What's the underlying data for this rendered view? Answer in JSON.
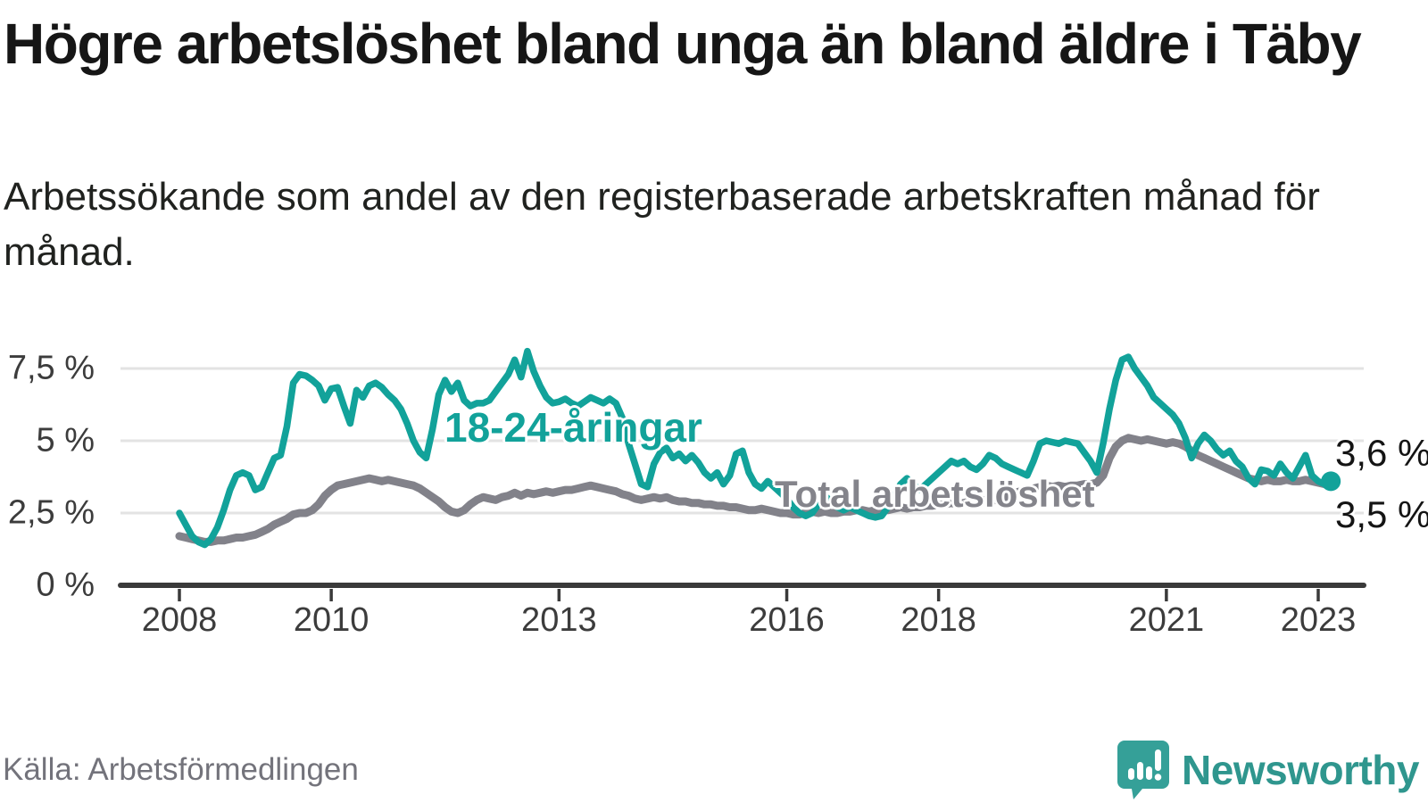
{
  "title": "Högre arbetslöshet bland unga än bland äldre i Täby",
  "subtitle": "Arbetssökande som andel av den registerbaserade arbetskraften månad för månad.",
  "source": "Källa: Arbetsförmedlingen",
  "brand": {
    "name": "Newsworthy",
    "icon": "speech-bubble-bar-chart-icon",
    "color": "#35a098"
  },
  "colors": {
    "young_line": "#12a29a",
    "total_line": "#82828a",
    "grid": "#e3e3e3",
    "axis": "#3a3a3a",
    "axis_text": "#3c3c3c",
    "end_label_text": "#141414",
    "background": "#ffffff"
  },
  "chart_data": {
    "type": "line",
    "title": "Högre arbetslöshet bland unga än bland äldre i Täby",
    "xlabel": "",
    "ylabel": "",
    "unit": "%",
    "grid": true,
    "legend": "inline-labels",
    "x_start": "2008-01",
    "x_end": "2023-03",
    "points_per_month": 1,
    "ylim": [
      0,
      8.5
    ],
    "y_ticks": [
      {
        "value": 7.5,
        "label": "7,5 %"
      },
      {
        "value": 5,
        "label": "5 %"
      },
      {
        "value": 2.5,
        "label": "2,5 %"
      },
      {
        "value": 0,
        "label": "0 %"
      }
    ],
    "x_ticks": [
      {
        "year": 2008,
        "label": "2008"
      },
      {
        "year": 2010,
        "label": "2010"
      },
      {
        "year": 2013,
        "label": "2013"
      },
      {
        "year": 2016,
        "label": "2016"
      },
      {
        "year": 2018,
        "label": "2018"
      },
      {
        "year": 2021,
        "label": "2021"
      },
      {
        "year": 2023,
        "label": "2023"
      }
    ],
    "series": [
      {
        "name": "18-24-åringar",
        "color": "#12a29a",
        "stroke_width": 7.5,
        "end_label": "3,6 %",
        "end_value": 3.6,
        "end_dot": true,
        "values": [
          2.5,
          2.1,
          1.7,
          1.5,
          1.4,
          1.6,
          2.0,
          2.6,
          3.3,
          3.8,
          3.9,
          3.8,
          3.3,
          3.4,
          3.9,
          4.4,
          4.5,
          5.5,
          7.0,
          7.3,
          7.25,
          7.1,
          6.9,
          6.4,
          6.8,
          6.85,
          6.2,
          5.6,
          6.75,
          6.5,
          6.9,
          7.0,
          6.85,
          6.6,
          6.4,
          6.1,
          5.6,
          5.0,
          4.6,
          4.4,
          5.4,
          6.6,
          7.1,
          6.7,
          7.0,
          6.4,
          6.2,
          6.3,
          6.3,
          6.4,
          6.7,
          7.0,
          7.3,
          7.8,
          7.2,
          8.1,
          7.4,
          6.9,
          6.5,
          6.3,
          6.35,
          6.45,
          6.3,
          6.2,
          6.35,
          6.5,
          6.4,
          6.3,
          6.45,
          6.3,
          5.8,
          4.9,
          4.2,
          3.5,
          3.4,
          4.2,
          4.6,
          4.75,
          4.4,
          4.55,
          4.3,
          4.5,
          4.25,
          3.9,
          3.7,
          3.9,
          3.5,
          3.8,
          4.55,
          4.65,
          3.9,
          3.5,
          3.35,
          3.6,
          3.4,
          3.2,
          3.0,
          2.7,
          2.5,
          2.4,
          2.5,
          2.8,
          3.1,
          2.9,
          2.7,
          2.6,
          2.7,
          2.6,
          2.5,
          2.4,
          2.35,
          2.4,
          2.7,
          3.1,
          3.5,
          3.7,
          3.5,
          3.3,
          3.5,
          3.7,
          3.9,
          4.1,
          4.3,
          4.2,
          4.3,
          4.1,
          4.0,
          4.2,
          4.5,
          4.4,
          4.2,
          4.1,
          4.0,
          3.9,
          3.8,
          4.3,
          4.9,
          5.0,
          4.95,
          4.9,
          5.0,
          4.95,
          4.9,
          4.6,
          4.3,
          3.9,
          4.9,
          6.1,
          7.1,
          7.8,
          7.9,
          7.5,
          7.2,
          6.9,
          6.5,
          6.3,
          6.1,
          5.9,
          5.6,
          5.1,
          4.4,
          4.9,
          5.2,
          5.0,
          4.7,
          4.5,
          4.65,
          4.3,
          4.1,
          3.7,
          3.5,
          4.0,
          3.95,
          3.8,
          4.2,
          3.9,
          3.7,
          4.1,
          4.5,
          3.8,
          3.6,
          3.5,
          3.6
        ]
      },
      {
        "name": "Total arbetslöshet",
        "color": "#82828a",
        "stroke_width": 9,
        "end_label": "3,5 %",
        "end_value": 3.5,
        "end_dot": false,
        "values": [
          1.7,
          1.65,
          1.6,
          1.55,
          1.5,
          1.5,
          1.55,
          1.55,
          1.6,
          1.65,
          1.65,
          1.7,
          1.75,
          1.85,
          1.95,
          2.1,
          2.2,
          2.3,
          2.45,
          2.5,
          2.5,
          2.6,
          2.8,
          3.1,
          3.3,
          3.45,
          3.5,
          3.55,
          3.6,
          3.65,
          3.7,
          3.65,
          3.6,
          3.65,
          3.6,
          3.55,
          3.5,
          3.45,
          3.35,
          3.2,
          3.05,
          2.9,
          2.7,
          2.55,
          2.5,
          2.6,
          2.8,
          2.95,
          3.05,
          3.0,
          2.95,
          3.05,
          3.1,
          3.2,
          3.1,
          3.2,
          3.15,
          3.2,
          3.25,
          3.2,
          3.25,
          3.3,
          3.3,
          3.35,
          3.4,
          3.45,
          3.4,
          3.35,
          3.3,
          3.25,
          3.15,
          3.1,
          3.0,
          2.95,
          3.0,
          3.05,
          3.0,
          3.05,
          2.95,
          2.9,
          2.9,
          2.85,
          2.85,
          2.8,
          2.8,
          2.75,
          2.75,
          2.7,
          2.7,
          2.65,
          2.6,
          2.6,
          2.65,
          2.6,
          2.55,
          2.5,
          2.5,
          2.45,
          2.45,
          2.5,
          2.55,
          2.5,
          2.55,
          2.5,
          2.5,
          2.55,
          2.55,
          2.6,
          2.6,
          2.55,
          2.6,
          2.65,
          2.6,
          2.65,
          2.7,
          2.65,
          2.7,
          2.7,
          2.75,
          2.75,
          2.8,
          2.8,
          2.85,
          2.8,
          2.85,
          2.9,
          2.9,
          2.95,
          2.9,
          2.95,
          3.0,
          3.1,
          3.2,
          3.25,
          3.3,
          3.35,
          3.4,
          3.45,
          3.4,
          3.45,
          3.4,
          3.45,
          3.45,
          3.5,
          3.5,
          3.55,
          3.8,
          4.4,
          4.8,
          5.0,
          5.1,
          5.05,
          5.0,
          5.05,
          5.0,
          4.95,
          4.9,
          4.95,
          4.9,
          4.8,
          4.65,
          4.5,
          4.4,
          4.3,
          4.2,
          4.1,
          4.0,
          3.9,
          3.8,
          3.7,
          3.65,
          3.6,
          3.65,
          3.6,
          3.6,
          3.65,
          3.6,
          3.6,
          3.65,
          3.6,
          3.55,
          3.5,
          3.5
        ]
      }
    ]
  }
}
